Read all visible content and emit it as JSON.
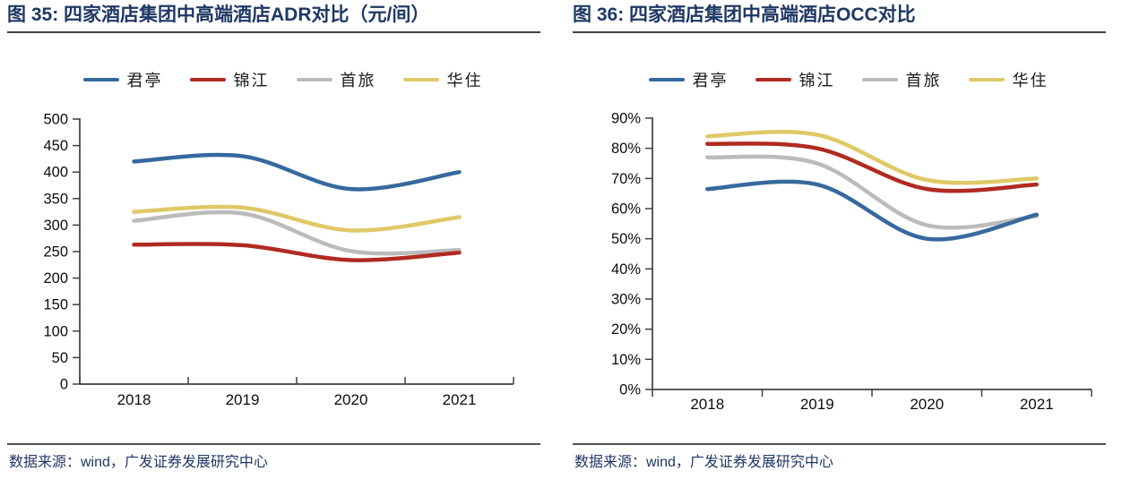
{
  "page": {
    "background": "#ffffff"
  },
  "colors": {
    "navy_accent": "#1F3864",
    "axis": "#404040",
    "series_blue": "#36699E",
    "series_red": "#B12A21",
    "series_gray": "#BBBBBB",
    "series_yellow": "#DFC966"
  },
  "panels": [
    {
      "title": "图 35:  四家酒店集团中高端酒店ADR对比（元/间）",
      "source": "数据来源：wind，广发证券发展研究中心"
    },
    {
      "title": "图 36:  四家酒店集团中高端酒店OCC对比",
      "source": "数据来源：wind，广发证券发展研究中心"
    }
  ],
  "chart_data": [
    {
      "type": "line",
      "title": "四家酒店集团中高端酒店ADR对比（元/间）",
      "categories": [
        "2018",
        "2019",
        "2020",
        "2021"
      ],
      "series": [
        {
          "name": "君亭",
          "color": "#36699E",
          "values": [
            420,
            430,
            368,
            400
          ]
        },
        {
          "name": "锦江",
          "color": "#B12A21",
          "values": [
            263,
            262,
            234,
            248
          ]
        },
        {
          "name": "首旅",
          "color": "#BBBBBB",
          "values": [
            308,
            322,
            251,
            253
          ]
        },
        {
          "name": "华住",
          "color": "#DFC966",
          "values": [
            325,
            333,
            290,
            315
          ]
        }
      ],
      "ylim": [
        0,
        500
      ],
      "ytick_step": 50,
      "ytick_labels": [
        "0",
        "50",
        "100",
        "150",
        "200",
        "250",
        "300",
        "350",
        "400",
        "450",
        "500"
      ],
      "ylabel": "",
      "xlabel": "",
      "grid": false,
      "legend_position": "top",
      "line_style": "smooth"
    },
    {
      "type": "line",
      "title": "四家酒店集团中高端酒店OCC对比",
      "categories": [
        "2018",
        "2019",
        "2020",
        "2021"
      ],
      "series": [
        {
          "name": "君亭",
          "color": "#36699E",
          "values": [
            66.5,
            68,
            50,
            58
          ]
        },
        {
          "name": "锦江",
          "color": "#B12A21",
          "values": [
            81.5,
            80,
            66.5,
            68
          ]
        },
        {
          "name": "首旅",
          "color": "#BBBBBB",
          "values": [
            77,
            75,
            54.5,
            57.5
          ]
        },
        {
          "name": "华住",
          "color": "#DFC966",
          "values": [
            84,
            84.5,
            69.5,
            70
          ]
        }
      ],
      "ylim": [
        0,
        90
      ],
      "ytick_step": 10,
      "ytick_labels": [
        "0%",
        "10%",
        "20%",
        "30%",
        "40%",
        "50%",
        "60%",
        "70%",
        "80%",
        "90%"
      ],
      "ylabel": "",
      "xlabel": "",
      "grid": false,
      "legend_position": "top",
      "line_style": "smooth"
    }
  ]
}
